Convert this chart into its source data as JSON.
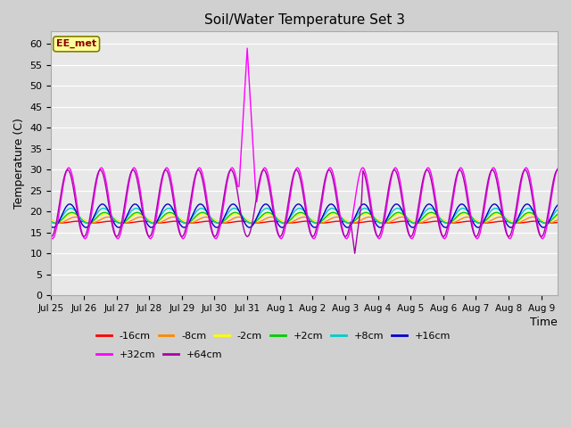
{
  "title": "Soil/Water Temperature Set 3",
  "xlabel": "Time",
  "ylabel": "Temperature (C)",
  "ylim": [
    0,
    63
  ],
  "yticks": [
    0,
    5,
    10,
    15,
    20,
    25,
    30,
    35,
    40,
    45,
    50,
    55,
    60
  ],
  "fig_bg_color": "#d0d0d0",
  "plot_bg_color": "#e8e8e8",
  "annotation_text": "EE_met",
  "annotation_bg": "#ffff99",
  "annotation_border": "#808000",
  "annotation_text_color": "#8B0000",
  "series_names": [
    "-16cm",
    "-8cm",
    "-2cm",
    "+2cm",
    "+8cm",
    "+16cm",
    "+32cm",
    "+64cm"
  ],
  "series_colors": [
    "#ff0000",
    "#ff8800",
    "#ffff00",
    "#00cc00",
    "#00cccc",
    "#0000cc",
    "#ff00ff",
    "#aa00aa"
  ],
  "n_days": 15.5,
  "xtick_labels": [
    "Jul 25",
    "Jul 26",
    "Jul 27",
    "Jul 28",
    "Jul 29",
    "Jul 30",
    "Jul 31",
    "Aug 1",
    "Aug 2",
    "Aug 3",
    "Aug 4",
    "Aug 5",
    "Aug 6",
    "Aug 7",
    "Aug 8",
    "Aug 9"
  ]
}
